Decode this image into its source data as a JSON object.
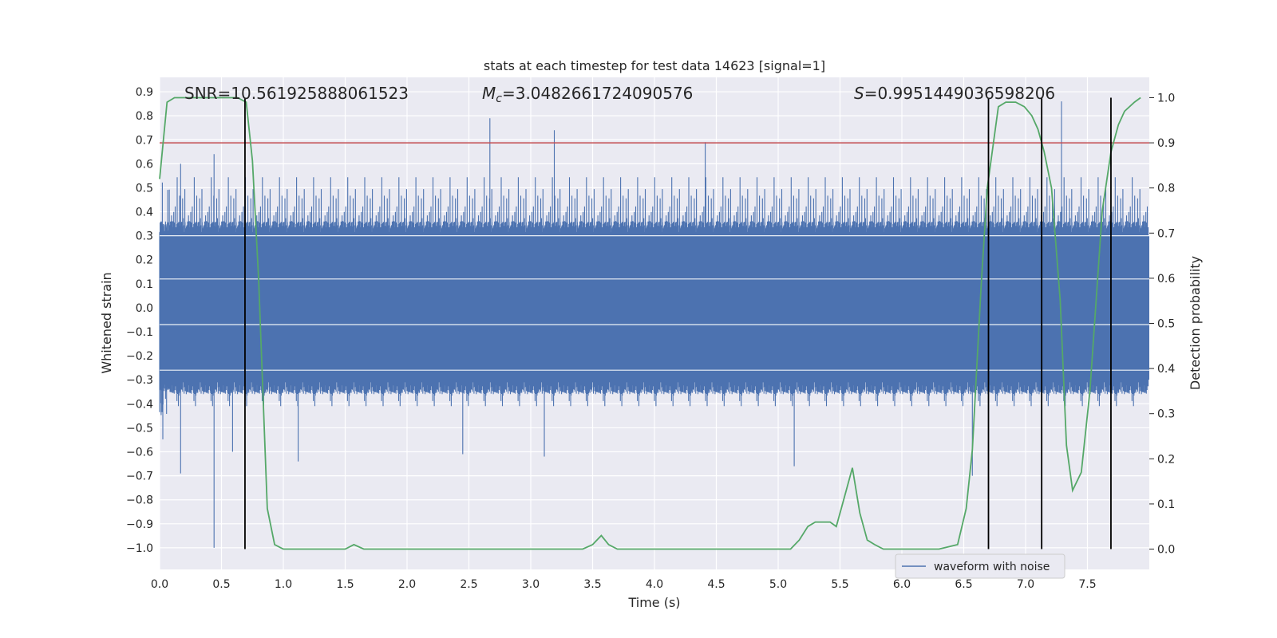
{
  "chart_data": {
    "type": "line",
    "title": "stats at each timestep for test data 14623 [signal=1]",
    "xlabel": "Time (s)",
    "ylabel_left": "Whitened strain",
    "ylabel_right": "Detection probability",
    "xlim": [
      0.0,
      8.0
    ],
    "ylim_left": [
      -1.09,
      0.96
    ],
    "ylim_right": [
      -0.045,
      1.045
    ],
    "x_ticks": [
      "0.0",
      "0.5",
      "1.0",
      "1.5",
      "2.0",
      "2.5",
      "3.0",
      "3.5",
      "4.0",
      "4.5",
      "5.0",
      "5.5",
      "6.0",
      "6.5",
      "7.0",
      "7.5"
    ],
    "x_tick_values": [
      0.0,
      0.5,
      1.0,
      1.5,
      2.0,
      2.5,
      3.0,
      3.5,
      4.0,
      4.5,
      5.0,
      5.5,
      6.0,
      6.5,
      7.0,
      7.5
    ],
    "y_left_ticks": [
      "0.9",
      "0.8",
      "0.7",
      "0.6",
      "0.5",
      "0.4",
      "0.3",
      "0.2",
      "0.1",
      "0.0",
      "−0.1",
      "−0.2",
      "−0.3",
      "−0.4",
      "−0.5",
      "−0.6",
      "−0.7",
      "−0.8",
      "−0.9",
      "−1.0"
    ],
    "y_left_tick_values": [
      0.9,
      0.8,
      0.7,
      0.6,
      0.5,
      0.4,
      0.3,
      0.2,
      0.1,
      0.0,
      -0.1,
      -0.2,
      -0.3,
      -0.4,
      -0.5,
      -0.6,
      -0.7,
      -0.8,
      -0.9,
      -1.0
    ],
    "y_right_ticks": [
      "1.0",
      "0.9",
      "0.8",
      "0.7",
      "0.6",
      "0.5",
      "0.4",
      "0.3",
      "0.2",
      "0.1",
      "0.0"
    ],
    "y_right_tick_values": [
      1.0,
      0.9,
      0.8,
      0.7,
      0.6,
      0.5,
      0.4,
      0.3,
      0.2,
      0.1,
      0.0
    ],
    "annotations": {
      "snr": "SNR=10.561925888061523",
      "mc_symbol": "M",
      "mc_sub": "c",
      "mc_value": "=3.0482661724090576",
      "s_symbol": "S",
      "s_value": "=0.9951449036598206"
    },
    "threshold": {
      "value": 0.9,
      "axis": "right",
      "color": "#c44e52"
    },
    "vertical_lines": [
      0.69,
      6.7,
      7.13,
      7.69
    ],
    "legend": {
      "label": "waveform with noise",
      "placement": "lower-right"
    },
    "series": [
      {
        "name": "waveform with noise",
        "axis": "left",
        "color": "#4c72b0",
        "kind": "noise",
        "envelope": {
          "typical_max": 0.3,
          "typical_min": -0.3
        },
        "peaks": [
          {
            "x": 0.44,
            "y": -1.0
          },
          {
            "x": 0.17,
            "y": -0.69
          },
          {
            "x": 0.17,
            "y": 0.6
          },
          {
            "x": 0.44,
            "y": 0.64
          },
          {
            "x": 2.67,
            "y": 0.79
          },
          {
            "x": 3.19,
            "y": 0.74
          },
          {
            "x": 4.41,
            "y": 0.69
          },
          {
            "x": 7.29,
            "y": 0.86
          },
          {
            "x": 6.57,
            "y": -0.7
          },
          {
            "x": 5.13,
            "y": -0.66
          },
          {
            "x": 3.11,
            "y": -0.62
          },
          {
            "x": 1.12,
            "y": -0.64
          },
          {
            "x": 0.59,
            "y": -0.6
          },
          {
            "x": 2.45,
            "y": -0.61
          }
        ]
      },
      {
        "name": "",
        "axis": "right",
        "color": "#55a868",
        "kind": "line",
        "x": [
          0.0,
          0.06,
          0.12,
          0.25,
          0.5,
          0.63,
          0.7,
          0.75,
          0.8,
          0.87,
          0.93,
          1.0,
          1.1,
          1.3,
          1.5,
          1.57,
          1.65,
          1.8,
          2.0,
          2.3,
          2.6,
          3.0,
          3.3,
          3.42,
          3.5,
          3.57,
          3.63,
          3.7,
          3.8,
          3.9,
          4.0,
          4.5,
          4.9,
          5.0,
          5.1,
          5.17,
          5.24,
          5.3,
          5.35,
          5.42,
          5.47,
          5.53,
          5.6,
          5.66,
          5.72,
          5.78,
          5.85,
          6.0,
          6.3,
          6.45,
          6.52,
          6.57,
          6.64,
          6.69,
          6.78,
          6.84,
          6.92,
          6.99,
          7.05,
          7.1,
          7.15,
          7.21,
          7.28,
          7.33,
          7.38,
          7.45,
          7.52,
          7.62,
          7.69,
          7.75,
          7.8,
          7.88,
          7.93
        ],
        "y": [
          0.82,
          0.99,
          1.0,
          1.0,
          1.0,
          1.0,
          0.99,
          0.86,
          0.6,
          0.09,
          0.01,
          0.0,
          0.0,
          0.0,
          0.0,
          0.01,
          0.0,
          0.0,
          0.0,
          0.0,
          0.0,
          0.0,
          0.0,
          0.0,
          0.01,
          0.03,
          0.01,
          0.0,
          0.0,
          0.0,
          0.0,
          0.0,
          0.0,
          0.0,
          0.0,
          0.02,
          0.05,
          0.06,
          0.06,
          0.06,
          0.05,
          0.11,
          0.18,
          0.08,
          0.02,
          0.01,
          0.0,
          0.0,
          0.0,
          0.01,
          0.09,
          0.22,
          0.58,
          0.8,
          0.98,
          0.99,
          0.99,
          0.98,
          0.96,
          0.93,
          0.88,
          0.8,
          0.55,
          0.23,
          0.13,
          0.17,
          0.35,
          0.75,
          0.88,
          0.94,
          0.97,
          0.99,
          1.0
        ]
      }
    ]
  }
}
